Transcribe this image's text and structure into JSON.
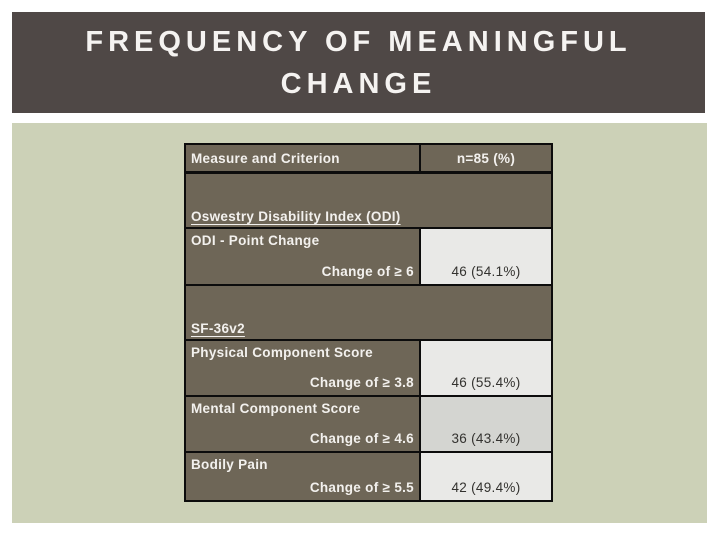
{
  "title": {
    "line1": "FREQUENCY OF MEANINGFUL",
    "line2": "CHANGE"
  },
  "table": {
    "header": {
      "col1": "Measure and Criterion",
      "col2": "n=85 (%)"
    },
    "sections": [
      {
        "name": "Oswestry Disability Index (ODI)",
        "measures": [
          {
            "name": "ODI - Point Change",
            "criterion": "Change of ≥ 6",
            "value": "46 (54.1%)"
          }
        ]
      },
      {
        "name": "SF-36v2",
        "measures": [
          {
            "name": "Physical Component Score",
            "criterion": "Change of ≥ 3.8",
            "value": "46 (55.4%)"
          },
          {
            "name": "Mental Component Score",
            "criterion": "Change of ≥ 4.6",
            "value": "36 (43.4%)"
          },
          {
            "name": "Bodily Pain",
            "criterion": "Change of ≥ 5.5",
            "value": "42 (49.4%)"
          }
        ]
      }
    ]
  },
  "colors": {
    "title_bar": "#4f4846",
    "panel": "#ccd1b7",
    "table_brown": "#6e6657",
    "cell_light": "#e9e9e7",
    "cell_gray": "#d4d5d1",
    "border": "#0c0c0c",
    "text_light": "#f3f1ee",
    "text_dark": "#33322f"
  }
}
